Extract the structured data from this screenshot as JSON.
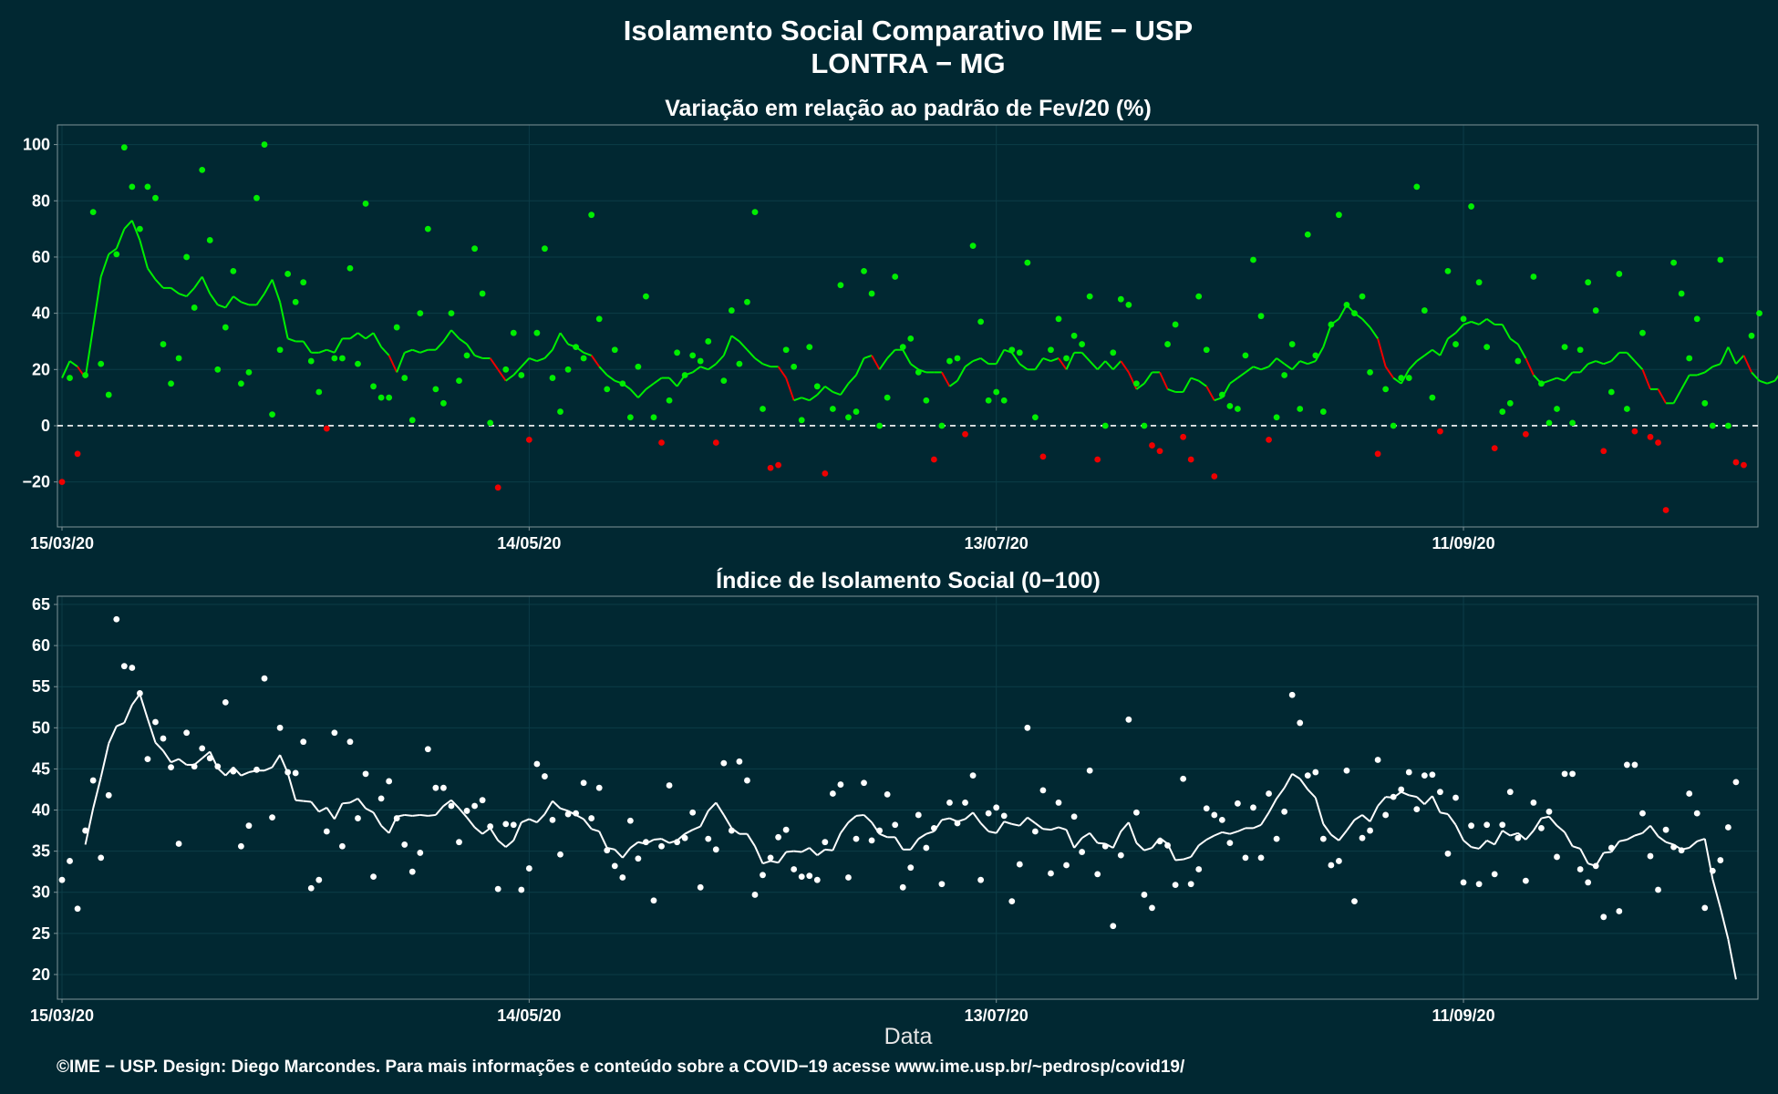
{
  "header": {
    "title": "Isolamento Social Comparativo IME − USP",
    "subtitle": "LONTRA − MG"
  },
  "footer": {
    "credit": "©IME − USP. Design: Diego Marcondes. Para mais informações e conteúdo sobre a COVID−19 acesse www.ime.usp.br/~pedrosp/covid19/"
  },
  "colors": {
    "background": "#012832",
    "positive": "#00ee00",
    "negative": "#ee0000",
    "index": "#ffffff",
    "reference_line": "#ffffff"
  },
  "chart_data": [
    {
      "type": "scatter",
      "title": "Variação em relação ao padrão de Fev/20 (%)",
      "xlabel": "",
      "ylabel": "",
      "x_start": "15/03/20",
      "n_days": 218,
      "x_ticks": [
        {
          "day": 0,
          "label": "15/03/20"
        },
        {
          "day": 60,
          "label": "14/05/20"
        },
        {
          "day": 120,
          "label": "13/07/20"
        },
        {
          "day": 180,
          "label": "11/09/20"
        }
      ],
      "y_ticks": [
        -20,
        0,
        20,
        40,
        60,
        80,
        100
      ],
      "ylim": [
        -36,
        107
      ],
      "grid": true,
      "reference_line": 0,
      "point_color_rule": "green if value >= 0, red if value < 0",
      "series": [
        {
          "values": [
            -20,
            17,
            -10,
            18,
            76,
            22,
            11,
            61,
            99,
            85,
            70,
            85,
            81,
            29,
            15,
            24,
            60,
            42,
            91,
            66,
            20,
            35,
            55,
            15,
            19,
            81,
            100,
            4,
            27,
            54,
            44,
            51,
            23,
            12,
            -1,
            24,
            24,
            56,
            22,
            79,
            14,
            10,
            10,
            35,
            17,
            2,
            40,
            70,
            13,
            8,
            40,
            16,
            25,
            63,
            47,
            1,
            -22,
            20,
            33,
            18,
            -5,
            33,
            63,
            17,
            5,
            20,
            28,
            24,
            75,
            38,
            13,
            27,
            15,
            3,
            21,
            46,
            3,
            -6,
            9,
            26,
            18,
            25,
            23,
            30,
            -6,
            16,
            41,
            22,
            44,
            76,
            6,
            -15,
            -14,
            27,
            21,
            2,
            28,
            14,
            -17,
            6,
            50,
            3,
            5,
            55,
            47,
            0,
            10,
            53,
            28,
            31,
            19,
            9,
            -12,
            0,
            23,
            24,
            -3,
            64,
            37,
            9,
            12,
            9,
            27,
            26,
            58,
            3,
            -11,
            27,
            38,
            24,
            32,
            29,
            46,
            -12,
            0,
            26,
            45,
            43,
            15,
            0,
            -7,
            -9,
            29,
            36,
            -4,
            -12,
            46,
            27,
            -18,
            11,
            7,
            6,
            25,
            59,
            39,
            -5,
            3,
            18,
            29,
            6,
            68,
            25,
            5,
            36,
            75,
            43,
            40,
            46,
            19,
            -10,
            13,
            0,
            17,
            17,
            85,
            41,
            10,
            -2,
            55,
            29,
            38,
            78,
            51,
            28,
            -8,
            5,
            8,
            23,
            -3,
            53,
            15,
            1,
            6,
            28,
            1,
            27,
            51,
            41,
            -9,
            12,
            54,
            6,
            -2,
            33,
            -4,
            -6,
            -30,
            58,
            47,
            24,
            38,
            8,
            0,
            59,
            0,
            -13,
            -14,
            32,
            40
          ]
        }
      ],
      "moving_average": [
        17,
        23,
        21,
        17,
        35,
        53,
        61,
        63,
        70,
        73,
        66,
        56,
        52,
        49,
        49,
        47,
        46,
        49,
        53,
        47,
        43,
        42,
        46,
        44,
        43,
        43,
        47,
        52,
        44,
        31,
        30,
        30,
        26,
        26,
        27,
        26,
        31,
        31,
        33,
        31,
        33,
        28,
        25,
        19,
        26,
        27,
        26,
        27,
        27,
        30,
        34,
        31,
        29,
        25,
        24,
        24,
        20,
        16,
        18,
        21,
        24,
        23,
        24,
        27,
        33,
        29,
        28,
        26,
        25,
        21,
        18,
        16,
        15,
        13,
        10,
        13,
        15,
        17,
        17,
        14,
        18,
        19,
        21,
        20,
        22,
        25,
        32,
        30,
        27,
        24,
        22,
        21,
        21,
        17,
        9,
        10,
        9,
        11,
        14,
        12,
        11,
        15,
        18,
        24,
        25,
        20,
        24,
        27,
        27,
        22,
        20,
        19,
        19,
        19,
        14,
        16,
        21,
        23,
        24,
        22,
        22,
        27,
        26,
        22,
        20,
        20,
        24,
        23,
        24,
        20,
        26,
        26,
        23,
        20,
        23,
        20,
        23,
        19,
        13,
        15,
        19,
        19,
        13,
        12,
        12,
        17,
        16,
        14,
        9,
        10,
        15,
        17,
        19,
        21,
        20,
        21,
        24,
        22,
        20,
        23,
        22,
        23,
        28,
        36,
        38,
        43,
        40,
        38,
        35,
        31,
        21,
        17,
        15,
        20,
        23,
        25,
        27,
        25,
        31,
        33,
        36,
        37,
        36,
        38,
        36,
        36,
        31,
        29,
        24,
        18,
        15,
        16,
        17,
        16,
        19,
        19,
        22,
        23,
        22,
        23,
        26,
        26,
        23,
        20,
        13,
        13,
        8,
        8,
        13,
        18,
        18,
        19,
        21,
        22,
        28,
        22,
        25,
        19,
        16,
        15,
        16,
        20
      ]
    },
    {
      "type": "scatter",
      "title": "Índice de Isolamento Social (0−100)",
      "xlabel": "Data",
      "ylabel": "",
      "x_start": "15/03/20",
      "n_days": 218,
      "x_ticks": [
        {
          "day": 0,
          "label": "15/03/20"
        },
        {
          "day": 60,
          "label": "14/05/20"
        },
        {
          "day": 120,
          "label": "13/07/20"
        },
        {
          "day": 180,
          "label": "11/09/20"
        }
      ],
      "y_ticks": [
        20,
        25,
        30,
        35,
        40,
        45,
        50,
        55,
        60,
        65
      ],
      "ylim": [
        17,
        66
      ],
      "grid": true,
      "series": [
        {
          "values": [
            31.5,
            33.8,
            28,
            37.5,
            43.6,
            34.2,
            41.8,
            63.2,
            57.5,
            57.3,
            54.2,
            46.2,
            50.7,
            48.7,
            45.2,
            35.9,
            49.4,
            45.3,
            47.5,
            46.3,
            45.3,
            53.1,
            44.7,
            35.6,
            38.1,
            44.9,
            56,
            39.1,
            50,
            44.6,
            44.5,
            48.3,
            30.5,
            31.5,
            37.4,
            49.4,
            35.6,
            48.3,
            39,
            44.4,
            31.9,
            41.4,
            43.5,
            39,
            35.8,
            32.5,
            34.8,
            47.4,
            42.7,
            42.7,
            40.5,
            36.1,
            39.9,
            40.5,
            41.2,
            38,
            30.4,
            38.3,
            38.2,
            30.3,
            32.9,
            45.6,
            44.1,
            38.8,
            34.6,
            39.5,
            39.6,
            43.3,
            39,
            42.7,
            35.1,
            33.2,
            31.8,
            38.7,
            34.1,
            36.1,
            29,
            35.6,
            43,
            36.1,
            36.6,
            39.7,
            30.6,
            36.5,
            35.2,
            45.7,
            37.5,
            45.9,
            43.6,
            29.7,
            32.1,
            34.2,
            36.7,
            37.6,
            32.8,
            31.9,
            32,
            31.5,
            36.1,
            42,
            43.1,
            31.8,
            36.5,
            43.3,
            36.3,
            37.5,
            41.9,
            38.2,
            30.6,
            33,
            39.4,
            35.4,
            37.8,
            31,
            40.9,
            38.4,
            40.9,
            44.2,
            31.5,
            39.6,
            40.3,
            39.3,
            28.9,
            33.4,
            50,
            37.4,
            42.4,
            32.3,
            40.9,
            33.3,
            39.2,
            34.9,
            44.8,
            32.2,
            35.6,
            25.9,
            34.5,
            51,
            39.7,
            29.7,
            28.1,
            36.2,
            35.7,
            30.9,
            43.8,
            31,
            32.8,
            40.2,
            39.4,
            38.8,
            36,
            40.8,
            34.2,
            40.3,
            34.2,
            42,
            36.5,
            39.8,
            54,
            50.6,
            44.2,
            44.6,
            36.5,
            33.3,
            33.8,
            44.8,
            28.9,
            36.6,
            37.5,
            46.1,
            39.4,
            41.6,
            42.5,
            44.6,
            40.1,
            44.2,
            44.3,
            42.2,
            34.7,
            41.5,
            31.2,
            38.1,
            31,
            38.2,
            32.2,
            38.2,
            42.2,
            36.6,
            31.4,
            40.9,
            37.8,
            39.8,
            34.3,
            44.4,
            44.4,
            32.8,
            31.2,
            33.2,
            27,
            35.4,
            27.7,
            45.5,
            45.5,
            39.6,
            34.4,
            30.3,
            37.6,
            35.5,
            35.1,
            42,
            39.6,
            28.1,
            32.6,
            33.9,
            37.9,
            43.4
          ]
        }
      ],
      "moving_average": [
        null,
        null,
        null,
        35.8,
        40.2,
        44,
        48.1,
        50.2,
        50.6,
        52.8,
        54.1,
        51.1,
        48.2,
        47.2,
        45.8,
        46.2,
        45.5,
        45.5,
        46.3,
        47.1,
        45.1,
        44.2,
        45.2,
        44.2,
        44.6,
        44.8,
        44.8,
        45.2,
        46.7,
        44.5,
        41.2,
        41.1,
        41,
        39.8,
        40.3,
        38.9,
        40.8,
        40.9,
        41.4,
        40.2,
        39.7,
        38.1,
        37.2,
        39.2,
        39.4,
        39.3,
        39.4,
        39.3,
        39.4,
        40.5,
        41.2,
        40.2,
        39.1,
        37.9,
        37.1,
        37.8,
        36.3,
        35.5,
        36.3,
        38.5,
        38.9,
        38.5,
        39.5,
        41.1,
        40.2,
        39.9,
        39.4,
        38.9,
        37.7,
        37.4,
        35.4,
        35.2,
        34.2,
        35.4,
        36.1,
        35.9,
        36.4,
        36.5,
        36,
        36.3,
        37.1,
        37.6,
        38,
        39.9,
        40.9,
        39.4,
        37.8,
        37.1,
        37.1,
        35.6,
        33.5,
        33.8,
        33.6,
        34.9,
        35,
        34.9,
        35.4,
        34.5,
        35.2,
        35.1,
        37.2,
        38.5,
        39.3,
        39.4,
        38.5,
        37.1,
        36.7,
        36.7,
        35.2,
        35.2,
        36.5,
        37.1,
        37.4,
        38.8,
        39,
        38.6,
        38.9,
        39.7,
        38.4,
        37.4,
        37.2,
        38.6,
        38.3,
        38.1,
        39.1,
        38.4,
        37.7,
        37.6,
        37.9,
        37.6,
        35.4,
        36.6,
        37.2,
        36,
        35.9,
        35.4,
        37.4,
        38.5,
        36,
        35.1,
        35.4,
        36.6,
        35.9,
        33.9,
        34,
        34.3,
        35.7,
        36.4,
        36.9,
        37.3,
        37.1,
        37.4,
        37.8,
        37.8,
        38.2,
        39.7,
        41.4,
        42.7,
        44.4,
        43.8,
        42.5,
        41.5,
        38.3,
        37,
        36.3,
        37.5,
        38.8,
        39.4,
        38.6,
        40.5,
        41.6,
        41.5,
        42.2,
        41.8,
        41.6,
        40.7,
        41.7,
        39.7,
        39.5,
        38.2,
        36.3,
        35.5,
        35.3,
        36.3,
        35.8,
        37.5,
        36.9,
        37.2,
        36.4,
        37.5,
        39,
        39.2,
        38.1,
        37.3,
        35.6,
        35.3,
        33.5,
        33.2,
        34.8,
        34.9,
        36.2,
        36.4,
        36.9,
        37.2,
        38.1,
        36.8,
        36.1,
        35.8,
        35.2,
        35.4,
        36.2,
        36.5,
        31.6,
        28.1,
        24.3,
        19.4
      ]
    }
  ]
}
